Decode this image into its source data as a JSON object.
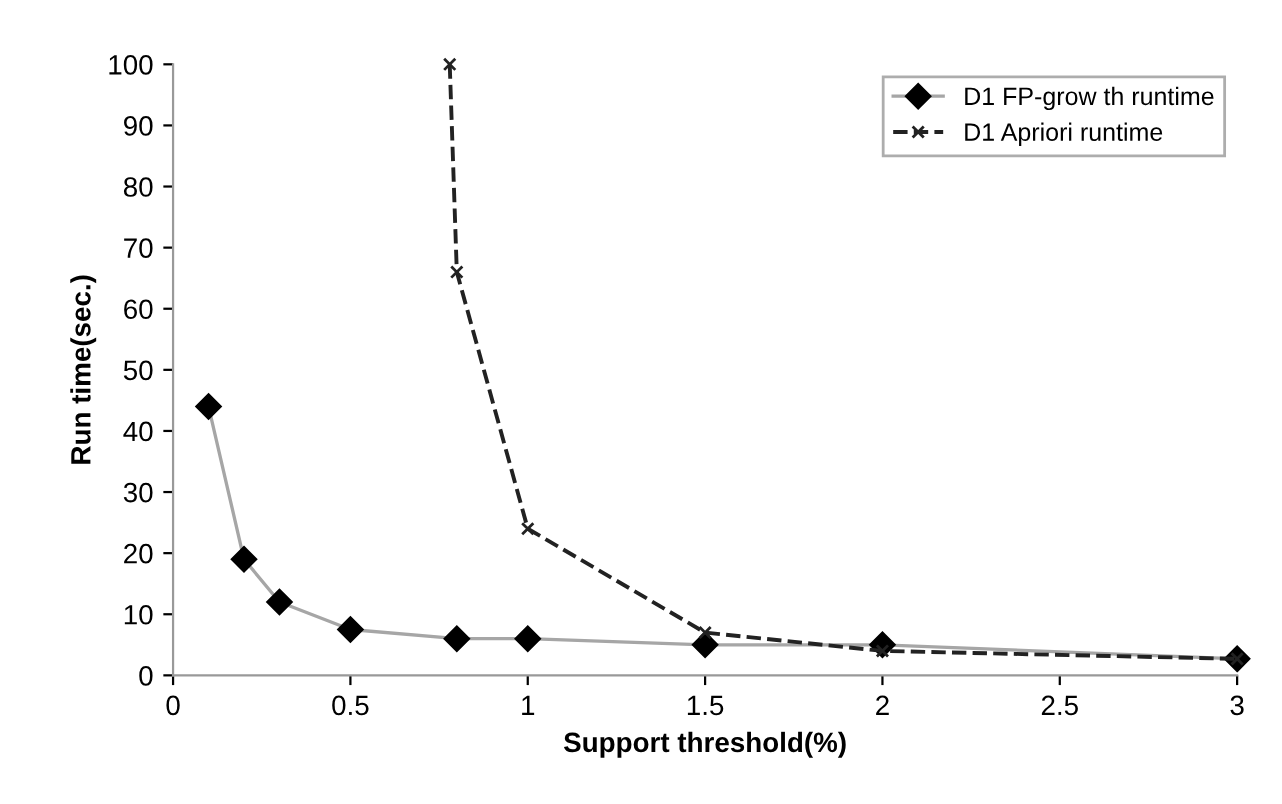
{
  "chart_data": {
    "type": "line",
    "xlabel": "Support threshold(%)",
    "ylabel": "Run time(sec.)",
    "xlim": [
      0,
      3
    ],
    "xticks": [
      0,
      0.5,
      1,
      1.5,
      2,
      2.5,
      3
    ],
    "ylim": [
      0,
      100
    ],
    "yticks": [
      0,
      10,
      20,
      30,
      40,
      50,
      60,
      70,
      80,
      90,
      100
    ],
    "grid": false,
    "legend": "top right",
    "series": [
      {
        "name": "D1 FP-grow th runtime",
        "color": "#a6a6a6",
        "marker": "diamond",
        "line_style": "solid",
        "x": [
          0.1,
          0.2,
          0.3,
          0.5,
          0.8,
          1,
          1.5,
          2,
          3
        ],
        "values": [
          44,
          19,
          12,
          7.5,
          6,
          6,
          5,
          5,
          2.7
        ]
      },
      {
        "name": "D1 Apriori runtime",
        "color": "#222222",
        "marker": "cross",
        "line_style": "dashed",
        "x": [
          0.78,
          0.8,
          1,
          1.5,
          2,
          3
        ],
        "values": [
          100,
          66,
          24,
          7,
          4,
          2.7
        ]
      }
    ]
  }
}
